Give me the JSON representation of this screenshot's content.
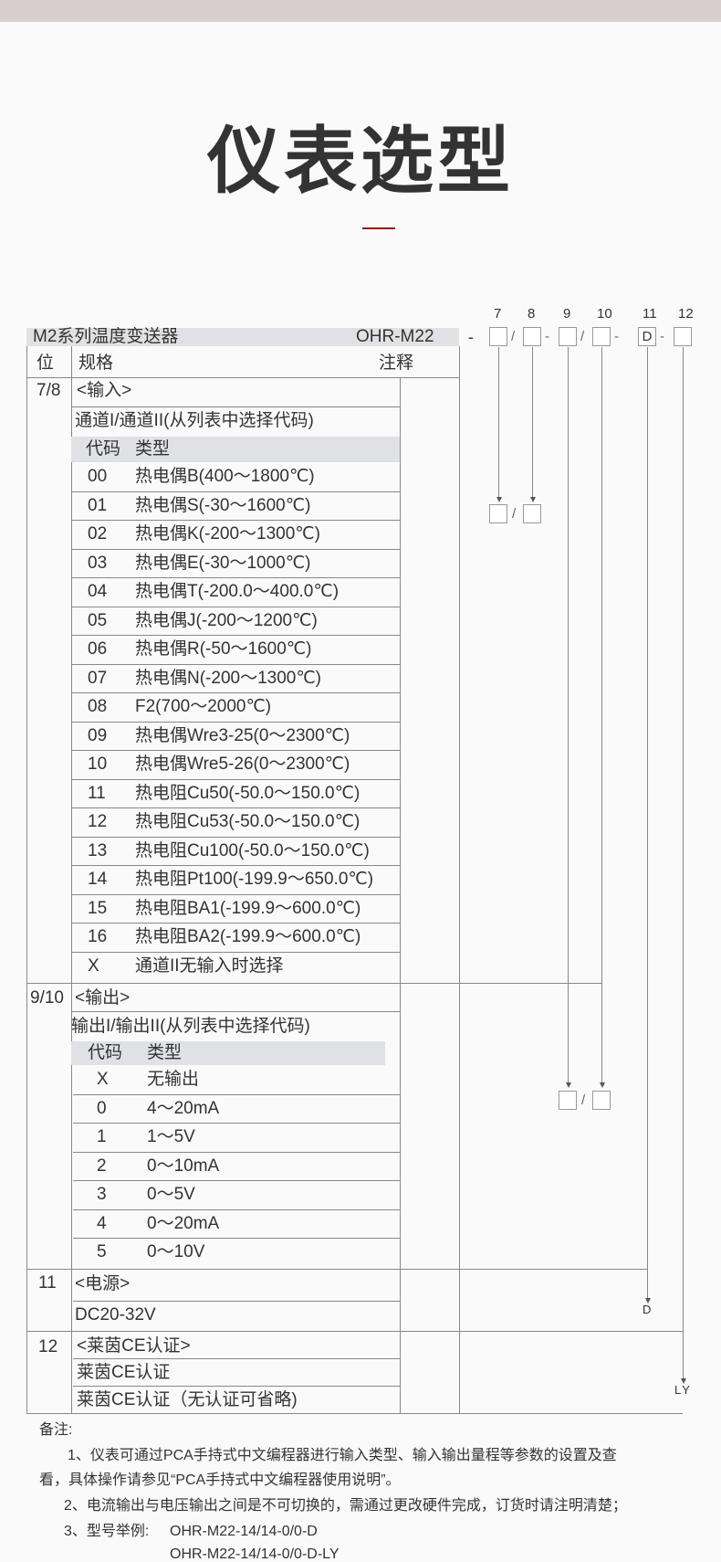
{
  "title": "仪表选型",
  "header": {
    "series": "M2系列温度变送器",
    "model": "OHR-M22",
    "positions": [
      "7",
      "8",
      "9",
      "10",
      "11",
      "12"
    ],
    "fixed_code_11": "D",
    "dash": "-",
    "slash": "/"
  },
  "columns": {
    "pos": "位",
    "spec": "规格",
    "note": "注释"
  },
  "input": {
    "pos": "7/8",
    "title": "<输入>",
    "desc": "通道I/通道II(从列表中选择代码)",
    "col_code": "代码",
    "col_type": "类型",
    "rows": [
      [
        "00",
        "热电偶B(400～1800℃)"
      ],
      [
        "01",
        "热电偶S(-30～1600℃)"
      ],
      [
        "02",
        "热电偶K(-200～1300℃)"
      ],
      [
        "03",
        "热电偶E(-30～1000℃)"
      ],
      [
        "04",
        "热电偶T(-200.0～400.0℃)"
      ],
      [
        "05",
        "热电偶J(-200～1200℃)"
      ],
      [
        "06",
        "热电偶R(-50～1600℃)"
      ],
      [
        "07",
        "热电偶N(-200～1300℃)"
      ],
      [
        "08",
        "F2(700～2000℃)"
      ],
      [
        "09",
        "热电偶Wre3-25(0～2300℃)"
      ],
      [
        "10",
        "热电偶Wre5-26(0～2300℃)"
      ],
      [
        "11",
        "热电阻Cu50(-50.0～150.0℃)"
      ],
      [
        "12",
        "热电阻Cu53(-50.0～150.0℃)"
      ],
      [
        "13",
        "热电阻Cu100(-50.0～150.0℃)"
      ],
      [
        "14",
        "热电阻Pt100(-199.9～650.0℃)"
      ],
      [
        "15",
        "热电阻BA1(-199.9～600.0℃)"
      ],
      [
        "16",
        "热电阻BA2(-199.9～600.0℃)"
      ],
      [
        "X",
        "通道II无输入时选择"
      ]
    ]
  },
  "output": {
    "pos": "9/10",
    "title": "<输出>",
    "desc": "输出I/输出II(从列表中选择代码)",
    "col_code": "代码",
    "col_type": "类型",
    "rows": [
      [
        "X",
        "无输出"
      ],
      [
        "0",
        "4～20mA"
      ],
      [
        "1",
        "1～5V"
      ],
      [
        "2",
        "0～10mA"
      ],
      [
        "3",
        "0～5V"
      ],
      [
        "4",
        "0～20mA"
      ],
      [
        "5",
        "0～10V"
      ]
    ]
  },
  "power": {
    "pos": "11",
    "title": "<电源>",
    "rows": [
      "DC20-32V"
    ],
    "code": "D"
  },
  "ce": {
    "pos": "12",
    "title": "<莱茵CE认证>",
    "rows": [
      "莱茵CE认证",
      "莱茵CE认证（无认证可省略)"
    ],
    "code": "LY"
  },
  "notes": {
    "heading": "备注:",
    "line1a": "1、仪表可通过PCA手持式中文编程器进行输入类型、输入输出量程等参数的设置及查",
    "line1b": "看，具体操作请参见“PCA手持式中文编程器使用说明”。",
    "line2": "2、电流输出与电压输出之间是不可切换的，需通过更改硬件完成，订货时请注明清楚；",
    "line3_label": "3、型号举例:",
    "examples": [
      "OHR-M22-14/14-0/0-D",
      "OHR-M22-14/14-0/0-D-LY"
    ]
  },
  "colors": {
    "accent": "#8b1a1a",
    "header_gray": "#e0e1e5",
    "top_band": "#d9cfcf"
  }
}
